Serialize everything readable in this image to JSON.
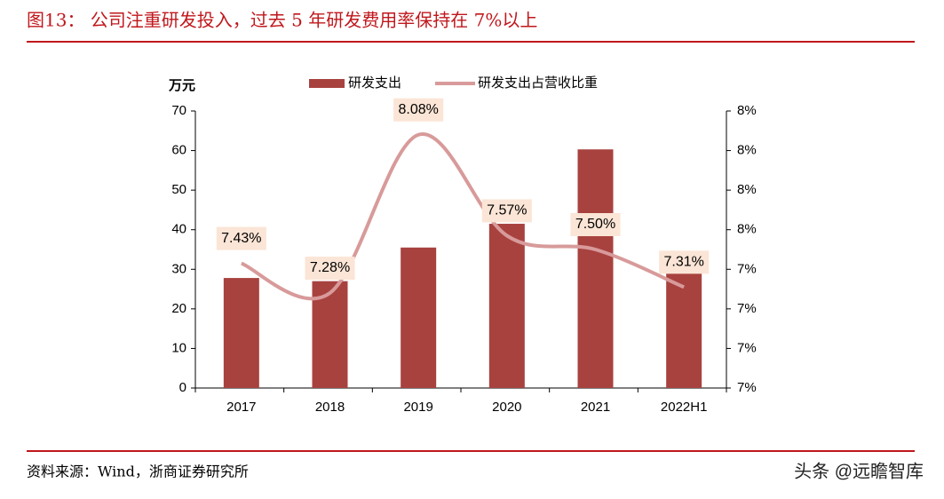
{
  "chart_data": {
    "type": "bar-line",
    "title": "图13： 公司注重研发投入，过去 5 年研发费用率保持在 7%以上",
    "y_label": "万元",
    "categories": [
      "2017",
      "2018",
      "2019",
      "2020",
      "2021",
      "2022H1"
    ],
    "series": [
      {
        "name": "研发支出",
        "type": "bar",
        "color": "#a8423f",
        "values": [
          27.8,
          27,
          35.5,
          41.5,
          60.3,
          29.6
        ]
      },
      {
        "name": "研发支出占营收比重",
        "type": "line",
        "axis": "y2",
        "color": "#d89a9a",
        "values": [
          7.43,
          7.28,
          8.08,
          7.57,
          7.5,
          7.31
        ],
        "value_labels": [
          "7.43%",
          "7.28%",
          "8.08%",
          "7.57%",
          "7.50%",
          "7.31%"
        ]
      }
    ],
    "ylim": [
      0,
      70
    ],
    "yticks": [
      0,
      10,
      20,
      30,
      40,
      50,
      60,
      70
    ],
    "y2lim": [
      6.8,
      8.2
    ],
    "y2ticks": [
      {
        "value": 6.8,
        "label": "7%"
      },
      {
        "value": 7.0,
        "label": "7%"
      },
      {
        "value": 7.2,
        "label": "7%"
      },
      {
        "value": 7.4,
        "label": "7%"
      },
      {
        "value": 7.6,
        "label": "8%"
      },
      {
        "value": 7.8,
        "label": "8%"
      },
      {
        "value": 8.0,
        "label": "8%"
      },
      {
        "value": 8.2,
        "label": "8%"
      }
    ],
    "grid": false
  },
  "footer": {
    "source": "资料来源：Wind，浙商证券研究所",
    "watermark": "头条 @远瞻智库"
  }
}
